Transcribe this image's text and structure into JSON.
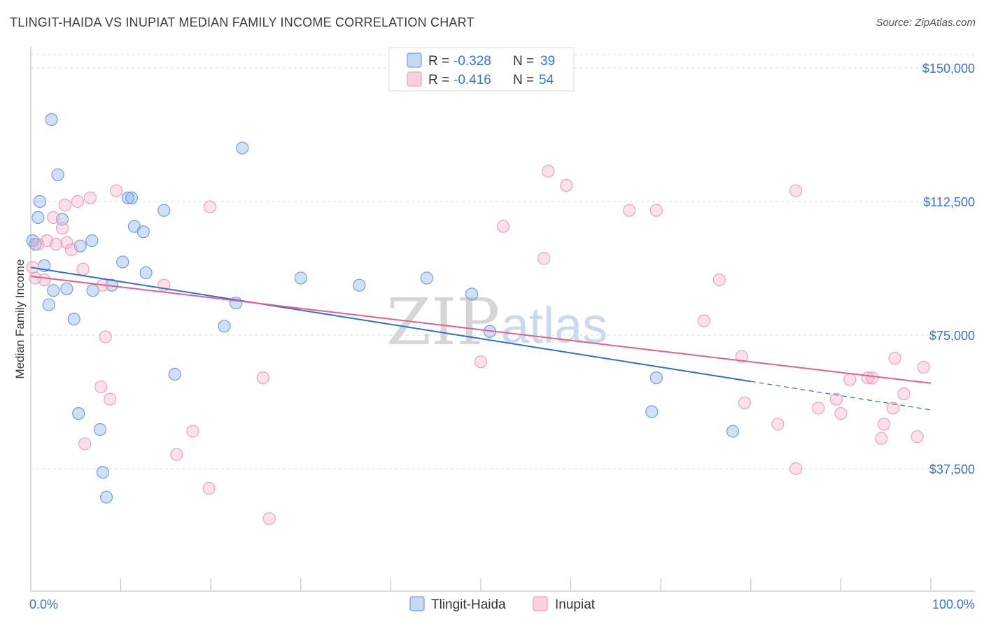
{
  "header": {
    "title": "TLINGIT-HAIDA VS INUPIAT MEDIAN FAMILY INCOME CORRELATION CHART",
    "source": "Source: ZipAtlas.com"
  },
  "watermark": {
    "zip": "ZIP",
    "atlas": "atlas"
  },
  "legend": {
    "series": [
      {
        "r_label": "R =",
        "r_value": "-0.328",
        "n_label": "N =",
        "n_value": "39"
      },
      {
        "r_label": "R =",
        "r_value": "-0.416",
        "n_label": "N =",
        "n_value": "54"
      }
    ]
  },
  "bottom_legend": [
    "Tlingit-Haida",
    "Inupiat"
  ],
  "chart_data": {
    "type": "scatter",
    "title": "TLINGIT-HAIDA VS INUPIAT MEDIAN FAMILY INCOME CORRELATION CHART",
    "xlabel": "",
    "ylabel": "Median Family Income",
    "xlim": [
      0,
      100
    ],
    "ylim": [
      0,
      155000
    ],
    "x_tick_labels": [
      "0.0%",
      "100.0%"
    ],
    "y_ticks": [
      37500,
      75000,
      112500,
      150000
    ],
    "y_tick_labels": [
      "$37,500",
      "$75,000",
      "$112,500",
      "$150,000"
    ],
    "grid": true,
    "legend_position": "top-center",
    "colors": {
      "tlingit": "#6fa0e0",
      "tlingit_line": "#2e6fd1",
      "inupiat": "#f0a0b8",
      "inupiat_line": "#e0628c"
    },
    "series": [
      {
        "name": "Tlingit-Haida",
        "points": [
          [
            0.2,
            101500
          ],
          [
            0.8,
            108000
          ],
          [
            1.0,
            112500
          ],
          [
            1.5,
            94500
          ],
          [
            2.0,
            83500
          ],
          [
            2.3,
            135500
          ],
          [
            2.5,
            87500
          ],
          [
            3.0,
            120000
          ],
          [
            3.5,
            107500
          ],
          [
            4.0,
            88000
          ],
          [
            4.8,
            79500
          ],
          [
            5.3,
            53000
          ],
          [
            5.5,
            100000
          ],
          [
            6.8,
            101500
          ],
          [
            6.9,
            87500
          ],
          [
            7.7,
            48500
          ],
          [
            8.0,
            36500
          ],
          [
            8.4,
            29500
          ],
          [
            9.0,
            89000
          ],
          [
            10.2,
            95500
          ],
          [
            10.8,
            113500
          ],
          [
            11.2,
            113500
          ],
          [
            11.5,
            105500
          ],
          [
            12.5,
            104000
          ],
          [
            12.8,
            92500
          ],
          [
            14.8,
            110000
          ],
          [
            16.0,
            64000
          ],
          [
            21.5,
            77500
          ],
          [
            22.8,
            84000
          ],
          [
            23.5,
            127500
          ],
          [
            30.0,
            91000
          ],
          [
            36.5,
            89000
          ],
          [
            44.0,
            91000
          ],
          [
            49.0,
            86500
          ],
          [
            51.0,
            76000
          ],
          [
            69.0,
            53500
          ],
          [
            69.5,
            63000
          ],
          [
            78.0,
            48000
          ],
          [
            0.5,
            100500
          ]
        ],
        "trend": {
          "x": [
            0,
            100
          ],
          "y": [
            94000,
            54000
          ]
        },
        "trend_solid_until_x": 80
      },
      {
        "name": "Inupiat",
        "points": [
          [
            0.2,
            94000
          ],
          [
            0.5,
            91000
          ],
          [
            0.8,
            100500
          ],
          [
            1.5,
            90500
          ],
          [
            1.8,
            101500
          ],
          [
            2.5,
            108000
          ],
          [
            2.8,
            100500
          ],
          [
            3.5,
            105000
          ],
          [
            3.8,
            111500
          ],
          [
            4.0,
            101000
          ],
          [
            4.5,
            99000
          ],
          [
            5.2,
            112500
          ],
          [
            5.8,
            93500
          ],
          [
            6.0,
            44500
          ],
          [
            6.6,
            113500
          ],
          [
            7.8,
            60500
          ],
          [
            8.0,
            89000
          ],
          [
            8.3,
            74500
          ],
          [
            8.8,
            57000
          ],
          [
            9.5,
            115500
          ],
          [
            14.8,
            89000
          ],
          [
            16.2,
            41500
          ],
          [
            18.0,
            48000
          ],
          [
            19.8,
            32000
          ],
          [
            19.9,
            111000
          ],
          [
            25.8,
            63000
          ],
          [
            26.5,
            23500
          ],
          [
            50.0,
            67500
          ],
          [
            52.5,
            105500
          ],
          [
            57.0,
            96500
          ],
          [
            57.5,
            121000
          ],
          [
            59.5,
            117000
          ],
          [
            66.5,
            110000
          ],
          [
            69.5,
            110000
          ],
          [
            74.8,
            79000
          ],
          [
            76.5,
            90500
          ],
          [
            79.0,
            69000
          ],
          [
            79.3,
            56000
          ],
          [
            83.0,
            50000
          ],
          [
            85.0,
            37500
          ],
          [
            85.0,
            115500
          ],
          [
            87.5,
            54500
          ],
          [
            89.5,
            57000
          ],
          [
            90.0,
            53000
          ],
          [
            91.0,
            62500
          ],
          [
            93.0,
            63000
          ],
          [
            93.5,
            63000
          ],
          [
            94.5,
            46000
          ],
          [
            94.8,
            50000
          ],
          [
            95.8,
            54500
          ],
          [
            96.0,
            68500
          ],
          [
            97.0,
            58500
          ],
          [
            98.5,
            46500
          ],
          [
            99.2,
            66000
          ]
        ],
        "trend": {
          "x": [
            0,
            100
          ],
          "y": [
            91500,
            61500
          ]
        }
      }
    ]
  }
}
